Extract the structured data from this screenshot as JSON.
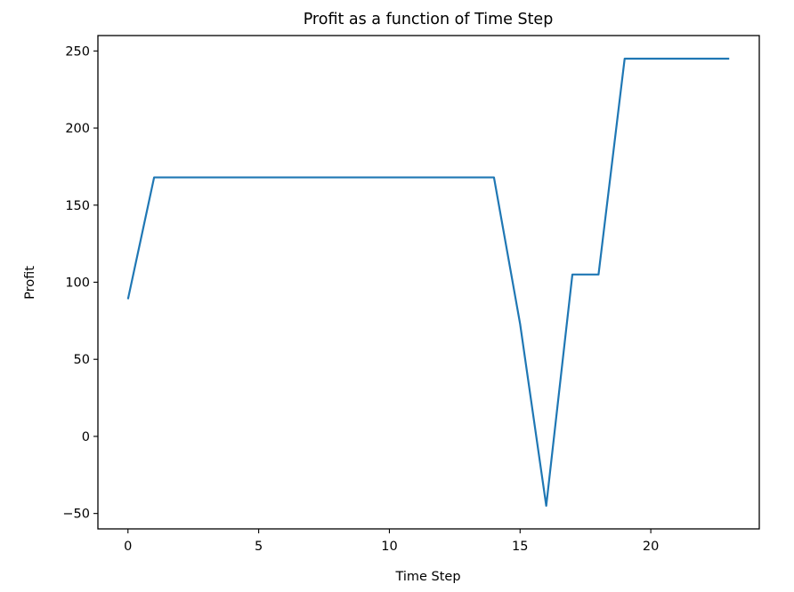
{
  "chart_data": {
    "type": "line",
    "title": "Profit as a function of Time Step",
    "xlabel": "Time Step",
    "ylabel": "Profit",
    "xlim": [
      -1.15,
      24.15
    ],
    "ylim": [
      -60,
      260
    ],
    "xticks": [
      0,
      5,
      10,
      15,
      20
    ],
    "xtick_labels": [
      "0",
      "5",
      "10",
      "15",
      "20"
    ],
    "yticks": [
      -50,
      0,
      50,
      100,
      150,
      200,
      250
    ],
    "ytick_labels": [
      "−50",
      "0",
      "50",
      "100",
      "150",
      "200",
      "250"
    ],
    "grid": false,
    "legend": false,
    "series": [
      {
        "color": "#1f77b4",
        "x": [
          0,
          1,
          2,
          3,
          4,
          5,
          6,
          7,
          8,
          9,
          10,
          11,
          12,
          13,
          14,
          15,
          16,
          17,
          18,
          19,
          20,
          21,
          22,
          23
        ],
        "y": [
          89,
          168,
          168,
          168,
          168,
          168,
          168,
          168,
          168,
          168,
          168,
          168,
          168,
          168,
          168,
          73,
          -45,
          105,
          105,
          245,
          245,
          245,
          245,
          245
        ]
      }
    ]
  }
}
